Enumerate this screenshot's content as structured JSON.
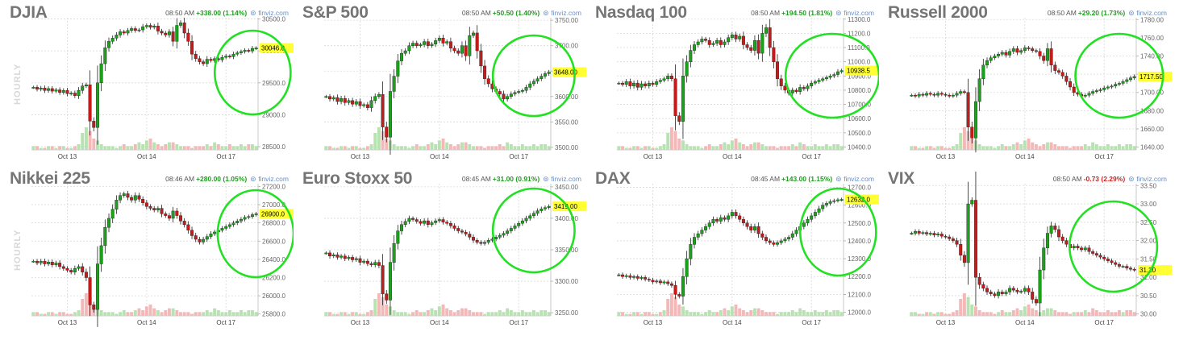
{
  "chart_data": [
    {
      "type": "candlestick",
      "title": "DJIA",
      "time": "08:50 AM",
      "change": "+338.00 (1.14%)",
      "change_color": "#1f9d1f",
      "source": "finviz.com",
      "side_label": "HOURLY",
      "x_ticks": [
        "Oct 13",
        "Oct 14",
        "Oct 17"
      ],
      "x_tick_pos": [
        9,
        30,
        51
      ],
      "y_ticks": [
        28500,
        29000,
        29500,
        30000,
        30500
      ],
      "y_tick_labels": [
        "28500.0",
        "29000.0",
        "29500.0",
        "30000.0",
        "30500.0"
      ],
      "ylim": [
        28450,
        30520
      ],
      "last": 30046,
      "last_label": "30046.0",
      "series": [
        29430,
        29400,
        29420,
        29380,
        29410,
        29370,
        29390,
        29350,
        29380,
        29330,
        29340,
        29300,
        29380,
        29450,
        29470,
        28900,
        28800,
        29500,
        29800,
        30050,
        30150,
        30200,
        30250,
        30300,
        30280,
        30320,
        30350,
        30320,
        30330,
        30380,
        30400,
        30370,
        30390,
        30310,
        30280,
        30250,
        30300,
        30150,
        30400,
        30440,
        30280,
        30150,
        29950,
        29880,
        29830,
        29800,
        29870,
        29850,
        29880,
        29860,
        29900,
        29920,
        29910,
        29950,
        29970,
        29990,
        30010,
        30000,
        30040,
        30046
      ],
      "volume": [
        2,
        2,
        1,
        1,
        2,
        2,
        1,
        2,
        2,
        1,
        1,
        2,
        3,
        9,
        12,
        10,
        6,
        5,
        3,
        2,
        2,
        2,
        1,
        2,
        3,
        2,
        2,
        3,
        4,
        3,
        5,
        6,
        4,
        3,
        2,
        3,
        4,
        4,
        3,
        2,
        2,
        2,
        1,
        2,
        2,
        2,
        3,
        2,
        4,
        3,
        2,
        2,
        3,
        2,
        2,
        3,
        2,
        3,
        3,
        2
      ],
      "highlight": {
        "center_x": 0.86,
        "center_y": 0.45,
        "rx": 0.13,
        "ry": 0.26
      }
    },
    {
      "type": "candlestick",
      "title": "S&P 500",
      "time": "08:50 AM",
      "change": "+50.50 (1.40%)",
      "change_color": "#1f9d1f",
      "source": "finviz.com",
      "side_label": "",
      "x_ticks": [
        "Oct 13",
        "Oct 14",
        "Oct 17"
      ],
      "x_tick_pos": [
        9,
        30,
        51
      ],
      "y_ticks": [
        3500,
        3550,
        3600,
        3650,
        3700,
        3750
      ],
      "y_tick_labels": [
        "3500.00",
        "3550.00",
        "3600.00",
        "3650.00",
        "3700.00",
        "3750.00"
      ],
      "ylim": [
        3495,
        3755
      ],
      "last": 3648,
      "last_label": "3648.00",
      "series": [
        3600,
        3595,
        3598,
        3590,
        3596,
        3588,
        3592,
        3585,
        3590,
        3582,
        3584,
        3578,
        3592,
        3600,
        3604,
        3540,
        3520,
        3610,
        3640,
        3670,
        3685,
        3690,
        3700,
        3705,
        3700,
        3702,
        3708,
        3700,
        3703,
        3710,
        3715,
        3705,
        3708,
        3695,
        3690,
        3685,
        3700,
        3680,
        3720,
        3725,
        3690,
        3660,
        3635,
        3625,
        3615,
        3610,
        3605,
        3595,
        3600,
        3605,
        3608,
        3610,
        3612,
        3618,
        3625,
        3630,
        3635,
        3640,
        3645,
        3648
      ],
      "volume": [
        2,
        2,
        1,
        1,
        2,
        2,
        1,
        2,
        2,
        1,
        1,
        2,
        3,
        9,
        12,
        10,
        6,
        5,
        3,
        2,
        2,
        2,
        1,
        2,
        3,
        2,
        2,
        3,
        4,
        3,
        5,
        6,
        4,
        3,
        2,
        3,
        4,
        4,
        3,
        2,
        2,
        2,
        1,
        2,
        2,
        2,
        3,
        2,
        4,
        3,
        2,
        2,
        3,
        2,
        2,
        3,
        2,
        3,
        3,
        2
      ],
      "highlight": {
        "center_x": 0.82,
        "center_y": 0.47,
        "rx": 0.14,
        "ry": 0.25
      }
    },
    {
      "type": "candlestick",
      "title": "Nasdaq 100",
      "time": "08:50 AM",
      "change": "+194.50 (1.81%)",
      "change_color": "#1f9d1f",
      "source": "finviz.com",
      "side_label": "",
      "x_ticks": [
        "Oct 13",
        "Oct 14",
        "Oct 17"
      ],
      "x_tick_pos": [
        9,
        30,
        51
      ],
      "y_ticks": [
        10400,
        10500,
        10600,
        10700,
        10800,
        10900,
        11000,
        11100,
        11200,
        11300
      ],
      "y_tick_labels": [
        "10400.0",
        "10500.0",
        "10600.0",
        "10700.0",
        "10800.0",
        "10900.0",
        "11000.0",
        "11100.0",
        "11200.0",
        "11300.0"
      ],
      "ylim": [
        10380,
        11310
      ],
      "last": 10938.5,
      "last_label": "10938.5",
      "series": [
        10850,
        10840,
        10860,
        10830,
        10850,
        10820,
        10845,
        10830,
        10850,
        10840,
        10860,
        10870,
        10880,
        10900,
        10880,
        10620,
        10580,
        10900,
        11000,
        11080,
        11120,
        11140,
        11160,
        11150,
        11120,
        11130,
        11150,
        11120,
        11140,
        11170,
        11190,
        11160,
        11180,
        11120,
        11100,
        11080,
        11150,
        11060,
        11200,
        11240,
        11100,
        11000,
        10880,
        10830,
        10800,
        10780,
        10800,
        10790,
        10820,
        10810,
        10830,
        10850,
        10860,
        10870,
        10880,
        10890,
        10900,
        10910,
        10930,
        10938
      ],
      "volume": [
        2,
        2,
        1,
        1,
        2,
        2,
        1,
        2,
        2,
        1,
        1,
        2,
        3,
        9,
        12,
        10,
        6,
        5,
        3,
        2,
        2,
        2,
        1,
        2,
        3,
        2,
        2,
        3,
        4,
        3,
        5,
        6,
        4,
        3,
        2,
        3,
        4,
        4,
        3,
        2,
        2,
        2,
        1,
        2,
        2,
        2,
        3,
        2,
        4,
        3,
        2,
        2,
        3,
        2,
        2,
        3,
        2,
        3,
        3,
        2
      ],
      "highlight": {
        "center_x": 0.84,
        "center_y": 0.47,
        "rx": 0.16,
        "ry": 0.26
      }
    },
    {
      "type": "candlestick",
      "title": "Russell 2000",
      "time": "08:50 AM",
      "change": "+29.20 (1.73%)",
      "change_color": "#1f9d1f",
      "source": "finviz.com",
      "side_label": "",
      "x_ticks": [
        "Oct 13",
        "Oct 14",
        "Oct 17"
      ],
      "x_tick_pos": [
        9,
        30,
        51
      ],
      "y_ticks": [
        1640,
        1660,
        1680,
        1700,
        1720,
        1740,
        1760,
        1780
      ],
      "y_tick_labels": [
        "1640.00",
        "1660.00",
        "1680.00",
        "1700.00",
        "1720.00",
        "1740.00",
        "1760.00",
        "1780.00"
      ],
      "ylim": [
        1637,
        1782
      ],
      "last": 1717.5,
      "last_label": "1717.50",
      "series": [
        1697,
        1696,
        1698,
        1697,
        1699,
        1698,
        1697,
        1699,
        1698,
        1697,
        1696,
        1697,
        1699,
        1701,
        1700,
        1662,
        1650,
        1690,
        1715,
        1730,
        1735,
        1738,
        1740,
        1742,
        1744,
        1741,
        1745,
        1748,
        1744,
        1746,
        1749,
        1748,
        1746,
        1745,
        1740,
        1735,
        1748,
        1730,
        1724,
        1722,
        1718,
        1712,
        1706,
        1700,
        1698,
        1696,
        1697,
        1699,
        1701,
        1702,
        1703,
        1705,
        1706,
        1707,
        1709,
        1710,
        1712,
        1714,
        1716,
        1717.5
      ],
      "volume": [
        2,
        2,
        1,
        1,
        2,
        2,
        1,
        2,
        2,
        1,
        1,
        2,
        3,
        9,
        12,
        10,
        6,
        5,
        3,
        2,
        2,
        2,
        1,
        2,
        3,
        2,
        2,
        3,
        4,
        3,
        5,
        6,
        4,
        3,
        2,
        3,
        4,
        4,
        3,
        2,
        2,
        2,
        1,
        2,
        2,
        2,
        3,
        2,
        4,
        3,
        2,
        2,
        3,
        2,
        2,
        3,
        2,
        3,
        3,
        2
      ],
      "highlight": {
        "center_x": 0.82,
        "center_y": 0.47,
        "rx": 0.15,
        "ry": 0.26
      }
    },
    {
      "type": "candlestick",
      "title": "Nikkei 225",
      "time": "08:46 AM",
      "change": "+280.00 (1.05%)",
      "change_color": "#1f9d1f",
      "source": "finviz.com",
      "side_label": "HOURLY",
      "x_ticks": [
        "Oct 13",
        "Oct 14",
        "Oct 17"
      ],
      "x_tick_pos": [
        9,
        30,
        51
      ],
      "y_ticks": [
        25800,
        26000,
        26200,
        26400,
        26600,
        26800,
        27000,
        27200
      ],
      "y_tick_labels": [
        "25800.0",
        "26000.0",
        "26200.0",
        "26400.0",
        "26600.0",
        "26800.0",
        "27000.0",
        "27200.0"
      ],
      "ylim": [
        25780,
        27230
      ],
      "last": 26900,
      "last_label": "26900.0",
      "series": [
        26380,
        26360,
        26380,
        26350,
        26370,
        26340,
        26360,
        26320,
        26300,
        26280,
        26260,
        26300,
        26320,
        26260,
        26200,
        25900,
        25850,
        26350,
        26550,
        26750,
        26850,
        26950,
        27050,
        27100,
        27120,
        27080,
        27050,
        27100,
        27060,
        27020,
        26980,
        26960,
        26940,
        26960,
        26900,
        26880,
        26850,
        26930,
        26880,
        26820,
        26780,
        26720,
        26660,
        26620,
        26590,
        26620,
        26650,
        26680,
        26700,
        26720,
        26740,
        26760,
        26780,
        26800,
        26820,
        26840,
        26860,
        26870,
        26890,
        26900
      ],
      "volume": [
        2,
        2,
        1,
        1,
        2,
        2,
        1,
        2,
        2,
        1,
        1,
        2,
        3,
        9,
        12,
        10,
        6,
        5,
        3,
        2,
        2,
        2,
        1,
        2,
        3,
        2,
        2,
        3,
        4,
        3,
        5,
        6,
        4,
        3,
        2,
        3,
        4,
        4,
        3,
        2,
        2,
        2,
        1,
        2,
        2,
        2,
        3,
        2,
        4,
        3,
        2,
        2,
        3,
        2,
        2,
        3,
        2,
        3,
        3,
        2
      ],
      "highlight": {
        "center_x": 0.87,
        "center_y": 0.42,
        "rx": 0.13,
        "ry": 0.27
      }
    },
    {
      "type": "candlestick",
      "title": "Euro Stoxx 50",
      "time": "08:45 AM",
      "change": "+31.00 (0.91%)",
      "change_color": "#1f9d1f",
      "source": "finviz.com",
      "side_label": "",
      "x_ticks": [
        "Oct 13",
        "Oct 14",
        "Oct 17"
      ],
      "x_tick_pos": [
        9,
        30,
        51
      ],
      "y_ticks": [
        3250,
        3300,
        3350,
        3400,
        3450
      ],
      "y_tick_labels": [
        "3250.00",
        "3300.00",
        "3350.00",
        "3400.00",
        "3450.00"
      ],
      "ylim": [
        3245,
        3455
      ],
      "last": 3419,
      "last_label": "3419.00",
      "series": [
        3345,
        3340,
        3342,
        3338,
        3340,
        3336,
        3338,
        3334,
        3336,
        3330,
        3332,
        3328,
        3326,
        3330,
        3325,
        3280,
        3270,
        3330,
        3360,
        3380,
        3390,
        3395,
        3400,
        3398,
        3395,
        3392,
        3396,
        3390,
        3393,
        3396,
        3398,
        3394,
        3392,
        3388,
        3384,
        3380,
        3378,
        3375,
        3370,
        3365,
        3362,
        3360,
        3362,
        3365,
        3367,
        3370,
        3373,
        3376,
        3380,
        3384,
        3388,
        3392,
        3396,
        3400,
        3404,
        3408,
        3412,
        3415,
        3417,
        3419
      ],
      "volume": [
        2,
        2,
        1,
        1,
        2,
        2,
        1,
        2,
        2,
        1,
        1,
        2,
        3,
        9,
        12,
        10,
        6,
        5,
        3,
        2,
        2,
        2,
        1,
        2,
        3,
        2,
        2,
        3,
        4,
        3,
        5,
        6,
        4,
        3,
        2,
        3,
        4,
        4,
        3,
        2,
        2,
        2,
        1,
        2,
        2,
        2,
        3,
        2,
        4,
        3,
        2,
        2,
        3,
        2,
        2,
        3,
        2,
        3,
        3,
        2
      ],
      "highlight": {
        "center_x": 0.82,
        "center_y": 0.4,
        "rx": 0.14,
        "ry": 0.26
      }
    },
    {
      "type": "candlestick",
      "title": "DAX",
      "time": "08:45 AM",
      "change": "+143.00 (1.15%)",
      "change_color": "#1f9d1f",
      "source": "finviz.com",
      "side_label": "",
      "x_ticks": [
        "Oct 13",
        "Oct 14",
        "Oct 17"
      ],
      "x_tick_pos": [
        9,
        30,
        51
      ],
      "y_ticks": [
        12000,
        12100,
        12200,
        12300,
        12400,
        12500,
        12600,
        12700
      ],
      "y_tick_labels": [
        "12000.0",
        "12100.0",
        "12200.0",
        "12300.0",
        "12400.0",
        "12500.0",
        "12600.0",
        "12700.0"
      ],
      "ylim": [
        11980,
        12720
      ],
      "last": 12632,
      "last_label": "12632.0",
      "series": [
        12210,
        12200,
        12205,
        12195,
        12200,
        12190,
        12195,
        12185,
        12180,
        12170,
        12175,
        12165,
        12170,
        12160,
        12150,
        12100,
        12090,
        12200,
        12300,
        12380,
        12420,
        12440,
        12460,
        12480,
        12500,
        12520,
        12510,
        12530,
        12520,
        12540,
        12560,
        12540,
        12520,
        12500,
        12480,
        12460,
        12480,
        12440,
        12420,
        12400,
        12390,
        12380,
        12390,
        12400,
        12410,
        12420,
        12440,
        12460,
        12480,
        12500,
        12520,
        12540,
        12560,
        12580,
        12600,
        12610,
        12620,
        12625,
        12630,
        12632
      ],
      "volume": [
        2,
        2,
        1,
        1,
        2,
        2,
        1,
        2,
        2,
        1,
        1,
        2,
        3,
        9,
        12,
        10,
        6,
        5,
        3,
        2,
        2,
        2,
        1,
        2,
        3,
        2,
        2,
        3,
        4,
        3,
        5,
        6,
        4,
        3,
        2,
        3,
        4,
        4,
        3,
        2,
        2,
        2,
        1,
        2,
        2,
        2,
        3,
        2,
        4,
        3,
        2,
        2,
        3,
        2,
        2,
        3,
        2,
        3,
        3,
        2
      ],
      "highlight": {
        "center_x": 0.86,
        "center_y": 0.41,
        "rx": 0.13,
        "ry": 0.27
      }
    },
    {
      "type": "candlestick",
      "title": "VIX",
      "time": "08:50 AM",
      "change": "-0.73 (2.29%)",
      "change_color": "#d42020",
      "source": "finviz.com",
      "side_label": "",
      "x_ticks": [
        "Oct 13",
        "Oct 14",
        "Oct 17"
      ],
      "x_tick_pos": [
        9,
        30,
        51
      ],
      "y_ticks": [
        30.0,
        30.5,
        31.0,
        31.5,
        32.0,
        32.5,
        33.0,
        33.5
      ],
      "y_tick_labels": [
        "30.00",
        "30.50",
        "31.00",
        "31.50",
        "32.00",
        "32.50",
        "33.00",
        "33.50"
      ],
      "ylim": [
        29.95,
        33.55
      ],
      "last": 31.2,
      "last_label": "31.20",
      "series": [
        32.2,
        32.25,
        32.2,
        32.22,
        32.18,
        32.2,
        32.15,
        32.18,
        32.12,
        32.1,
        32.05,
        32.0,
        31.9,
        31.6,
        31.4,
        33.0,
        33.1,
        31.0,
        30.8,
        30.7,
        30.6,
        30.55,
        30.5,
        30.6,
        30.55,
        30.6,
        30.7,
        30.65,
        30.6,
        30.62,
        30.7,
        30.6,
        30.4,
        30.3,
        31.2,
        31.8,
        32.2,
        32.4,
        32.3,
        32.1,
        32.0,
        31.9,
        31.8,
        31.85,
        31.8,
        31.75,
        31.8,
        31.7,
        31.65,
        31.6,
        31.55,
        31.5,
        31.45,
        31.4,
        31.35,
        31.3,
        31.3,
        31.25,
        31.22,
        31.2
      ],
      "volume": [
        2,
        2,
        1,
        1,
        2,
        2,
        1,
        2,
        2,
        1,
        1,
        2,
        3,
        9,
        12,
        10,
        6,
        5,
        3,
        2,
        2,
        2,
        1,
        2,
        3,
        2,
        2,
        3,
        4,
        3,
        5,
        6,
        4,
        3,
        2,
        3,
        4,
        4,
        3,
        2,
        2,
        2,
        1,
        2,
        2,
        2,
        3,
        2,
        4,
        3,
        2,
        2,
        3,
        2,
        2,
        3,
        2,
        3,
        3,
        2
      ],
      "highlight": {
        "center_x": 0.8,
        "center_y": 0.5,
        "rx": 0.15,
        "ry": 0.28
      }
    }
  ]
}
